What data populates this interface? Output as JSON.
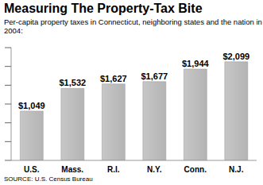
{
  "chart_data": {
    "type": "bar",
    "title": "Measuring The Property-Tax Bite",
    "subtitle": "Per-capita property taxes in Connecticut, neighboring states and the nation in 2004:",
    "source": "SOURCE: U.S. Census Bureau",
    "categories": [
      "U.S.",
      "Mass.",
      "R.I.",
      "N.Y.",
      "Conn.",
      "N.J."
    ],
    "values": [
      1049,
      1532,
      1627,
      1677,
      1944,
      2099
    ],
    "value_labels": [
      "$1,049",
      "$1,532",
      "$1,627",
      "$1,677",
      "$1,944",
      "$2,099"
    ],
    "data_labels": true,
    "color": "#b4b4b4",
    "ylim": [
      0,
      2400
    ],
    "yticks": [
      0,
      400,
      800,
      1200,
      1600,
      2000,
      2400
    ],
    "tick_labels": "x",
    "grid": false
  }
}
